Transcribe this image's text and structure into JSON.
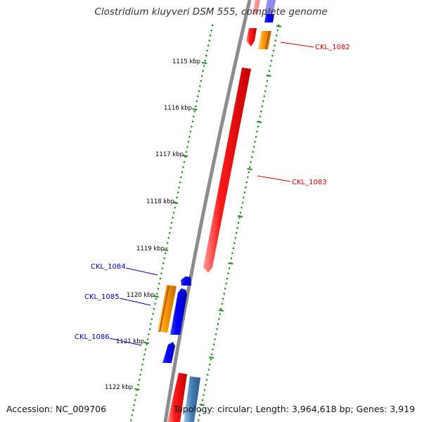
{
  "title": "Clostridium kluyveri DSM 555, complete genome",
  "footer": {
    "accession": "Accession: NC_009706",
    "summary": "Topology: circular; Length: 3,964,618 bp; Genes: 3,919"
  },
  "colors": {
    "background": "#ffffff",
    "backbone": "#8c8c8c",
    "tick_dots": "#228b22",
    "forward_gene": "#ff0000",
    "reverse_gene": "#0000ff",
    "other_gene": "#ff9900",
    "trna_gene": "#4682b4",
    "label_forward": "#e00000",
    "label_reverse": "#0000cc"
  },
  "ticks": [
    "1115 kbp",
    "1116 kbp",
    "1117 kbp",
    "1118 kbp",
    "1119 kbp",
    "1120 kbp",
    "1121 kbp",
    "1122 kbp"
  ],
  "genes": [
    {
      "name": "CKL_1082",
      "strand": "forward",
      "type": "cds"
    },
    {
      "name": "CKL_1083",
      "strand": "forward",
      "type": "cds"
    },
    {
      "name": "CKL_1084",
      "strand": "reverse",
      "type": "cds"
    },
    {
      "name": "CKL_1085",
      "strand": "reverse",
      "type": "cds"
    },
    {
      "name": "CKL_1086",
      "strand": "reverse",
      "type": "cds"
    }
  ]
}
